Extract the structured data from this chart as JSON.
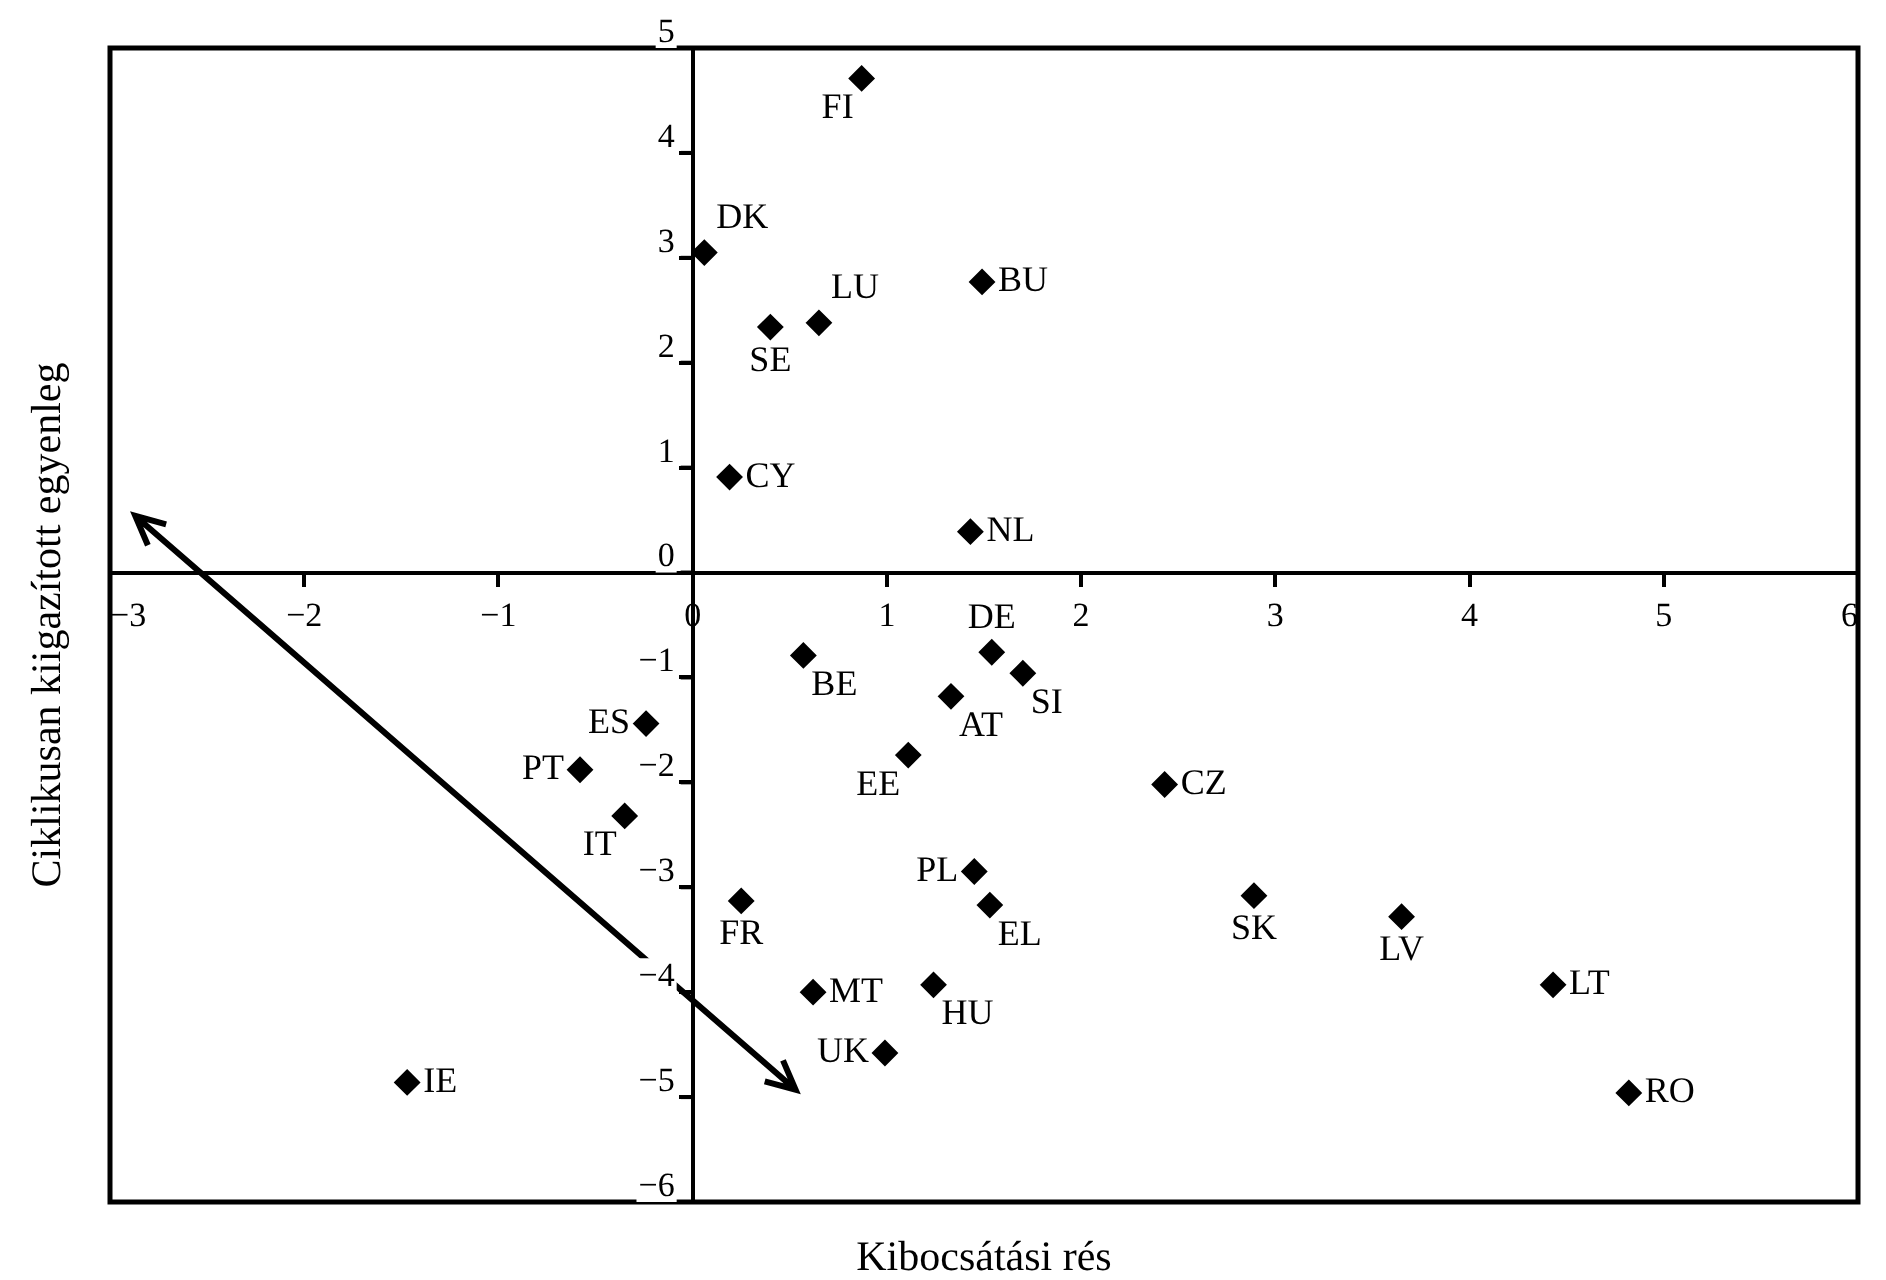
{
  "chart_data": {
    "type": "scatter",
    "xlabel": "Kibocsátási rés",
    "ylabel": "Ciklikusan kiigazított egyenleg",
    "color": "#000000",
    "marker": "diamond",
    "grid": false,
    "x": [
      0.87,
      0.06,
      0.4,
      0.65,
      0.19,
      1.49,
      1.43,
      0.57,
      1.54,
      1.7,
      1.33,
      1.11,
      -0.24,
      -0.58,
      -0.35,
      2.43,
      1.45,
      1.53,
      0.25,
      2.89,
      3.65,
      4.43,
      0.62,
      1.24,
      0.99,
      -1.47,
      4.82
    ],
    "values": [
      4.71,
      3.05,
      2.34,
      2.38,
      0.91,
      2.77,
      0.39,
      -0.79,
      -0.76,
      -0.96,
      -1.18,
      -1.74,
      -1.44,
      -1.88,
      -2.32,
      -2.02,
      -2.85,
      -3.17,
      -3.13,
      -3.08,
      -3.28,
      -3.93,
      -4.0,
      -3.93,
      -4.58,
      -4.86,
      -4.96
    ],
    "xlim": [
      -3,
      6
    ],
    "ylim": [
      -6,
      5
    ],
    "xticks": [
      -3,
      -2,
      -1,
      0,
      1,
      2,
      3,
      4,
      5,
      6
    ],
    "yticks": [
      -6,
      -5,
      -4,
      -3,
      -2,
      -1,
      0,
      1,
      2,
      3,
      4,
      5
    ],
    "annotations": [
      {
        "text": "FI",
        "x": 0.87,
        "y": 4.71
      },
      {
        "text": "DK",
        "x": 0.06,
        "y": 3.05
      },
      {
        "text": "SE",
        "x": 0.4,
        "y": 2.34
      },
      {
        "text": "LU",
        "x": 0.65,
        "y": 2.38
      },
      {
        "text": "CY",
        "x": 0.19,
        "y": 0.91
      },
      {
        "text": "BU",
        "x": 1.49,
        "y": 2.77
      },
      {
        "text": "NL",
        "x": 1.43,
        "y": 0.39
      },
      {
        "text": "BE",
        "x": 0.57,
        "y": -0.79
      },
      {
        "text": "DE",
        "x": 1.54,
        "y": -0.76
      },
      {
        "text": "SI",
        "x": 1.7,
        "y": -0.96
      },
      {
        "text": "AT",
        "x": 1.33,
        "y": -1.18
      },
      {
        "text": "EE",
        "x": 1.11,
        "y": -1.74
      },
      {
        "text": "ES",
        "x": -0.24,
        "y": -1.44
      },
      {
        "text": "PT",
        "x": -0.58,
        "y": -1.88
      },
      {
        "text": "IT",
        "x": -0.35,
        "y": -2.32
      },
      {
        "text": "CZ",
        "x": 2.43,
        "y": -2.02
      },
      {
        "text": "PL",
        "x": 1.45,
        "y": -2.85
      },
      {
        "text": "EL",
        "x": 1.53,
        "y": -3.17
      },
      {
        "text": "FR",
        "x": 0.25,
        "y": -3.13
      },
      {
        "text": "SK",
        "x": 2.89,
        "y": -3.08
      },
      {
        "text": "LV",
        "x": 3.65,
        "y": -3.28
      },
      {
        "text": "LT",
        "x": 4.43,
        "y": -3.93
      },
      {
        "text": "MT",
        "x": 0.62,
        "y": -4.0
      },
      {
        "text": "HU",
        "x": 1.24,
        "y": -3.93
      },
      {
        "text": "UK",
        "x": 0.99,
        "y": -4.58
      },
      {
        "text": "IE",
        "x": -1.47,
        "y": -4.86
      },
      {
        "text": "RO",
        "x": 4.82,
        "y": -4.96
      }
    ]
  }
}
